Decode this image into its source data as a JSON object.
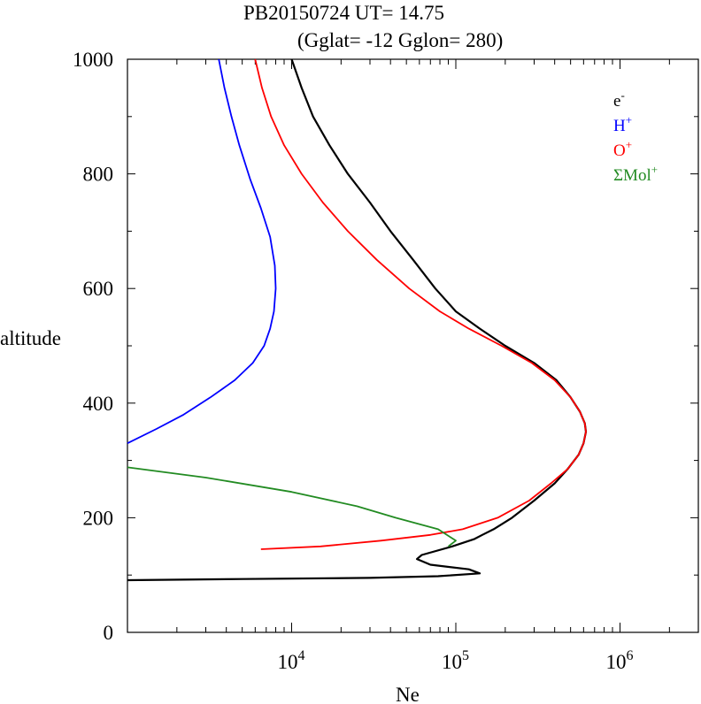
{
  "chart_data": {
    "type": "line",
    "title": "PB20150724   UT=  14.75",
    "subtitle": "(Gglat= -12   Gglon=  280)",
    "xlabel": "Ne",
    "ylabel": "altitude",
    "x_scale": "log",
    "xlim": [
      1000,
      3000000
    ],
    "ylim": [
      0,
      1000
    ],
    "x_ticks": [
      {
        "value": 10000,
        "base": "10",
        "exp": "4"
      },
      {
        "value": 100000,
        "base": "10",
        "exp": "5"
      },
      {
        "value": 1000000,
        "base": "10",
        "exp": "6"
      }
    ],
    "y_ticks": [
      "0",
      "200",
      "400",
      "600",
      "800",
      "1000"
    ],
    "legend_placement": "top-right",
    "series": [
      {
        "name": "e-",
        "label_base": "e",
        "label_sup": "-",
        "color": "#000000",
        "points": [
          [
            1000,
            91
          ],
          [
            5000,
            93
          ],
          [
            30000,
            95
          ],
          [
            78000,
            98
          ],
          [
            140000,
            103
          ],
          [
            120000,
            110
          ],
          [
            70000,
            118
          ],
          [
            58000,
            128
          ],
          [
            62000,
            135
          ],
          [
            95000,
            150
          ],
          [
            130000,
            163
          ],
          [
            145000,
            170
          ],
          [
            170000,
            180
          ],
          [
            220000,
            200
          ],
          [
            300000,
            230
          ],
          [
            400000,
            260
          ],
          [
            480000,
            285
          ],
          [
            560000,
            310
          ],
          [
            600000,
            330
          ],
          [
            620000,
            350
          ],
          [
            610000,
            365
          ],
          [
            570000,
            385
          ],
          [
            500000,
            410
          ],
          [
            410000,
            440
          ],
          [
            300000,
            470
          ],
          [
            200000,
            500
          ],
          [
            140000,
            530
          ],
          [
            100000,
            560
          ],
          [
            75000,
            600
          ],
          [
            55000,
            650
          ],
          [
            40000,
            700
          ],
          [
            30000,
            750
          ],
          [
            22000,
            800
          ],
          [
            17000,
            850
          ],
          [
            13500,
            900
          ],
          [
            11500,
            950
          ],
          [
            10000,
            1000
          ]
        ]
      },
      {
        "name": "H+",
        "label_base": "H",
        "label_sup": "+",
        "color": "#0000ff",
        "points": [
          [
            1000,
            330
          ],
          [
            1500,
            355
          ],
          [
            2200,
            380
          ],
          [
            3200,
            410
          ],
          [
            4500,
            440
          ],
          [
            5800,
            470
          ],
          [
            6800,
            500
          ],
          [
            7400,
            530
          ],
          [
            7800,
            560
          ],
          [
            8000,
            600
          ],
          [
            7900,
            640
          ],
          [
            7400,
            690
          ],
          [
            6500,
            740
          ],
          [
            5600,
            790
          ],
          [
            4800,
            850
          ],
          [
            4300,
            900
          ],
          [
            3900,
            950
          ],
          [
            3600,
            1000
          ]
        ]
      },
      {
        "name": "O+",
        "label_base": "O",
        "label_sup": "+",
        "color": "#ff0000",
        "points": [
          [
            6500,
            145
          ],
          [
            15000,
            150
          ],
          [
            35000,
            160
          ],
          [
            70000,
            170
          ],
          [
            110000,
            180
          ],
          [
            180000,
            200
          ],
          [
            280000,
            230
          ],
          [
            380000,
            260
          ],
          [
            480000,
            285
          ],
          [
            560000,
            310
          ],
          [
            600000,
            330
          ],
          [
            620000,
            350
          ],
          [
            610000,
            365
          ],
          [
            570000,
            385
          ],
          [
            500000,
            410
          ],
          [
            400000,
            440
          ],
          [
            290000,
            470
          ],
          [
            190000,
            500
          ],
          [
            120000,
            530
          ],
          [
            80000,
            560
          ],
          [
            52000,
            600
          ],
          [
            33000,
            650
          ],
          [
            22000,
            700
          ],
          [
            15500,
            750
          ],
          [
            11500,
            800
          ],
          [
            9000,
            850
          ],
          [
            7500,
            900
          ],
          [
            6600,
            950
          ],
          [
            6000,
            1000
          ]
        ]
      },
      {
        "name": "ΣMol+",
        "label_base": "ΣMol",
        "label_sup": "+",
        "color": "#228b22",
        "points": [
          [
            1000,
            288
          ],
          [
            3000,
            270
          ],
          [
            10000,
            245
          ],
          [
            25000,
            220
          ],
          [
            43000,
            200
          ],
          [
            78000,
            180
          ],
          [
            100000,
            160
          ],
          [
            90000,
            150
          ]
        ]
      }
    ]
  }
}
